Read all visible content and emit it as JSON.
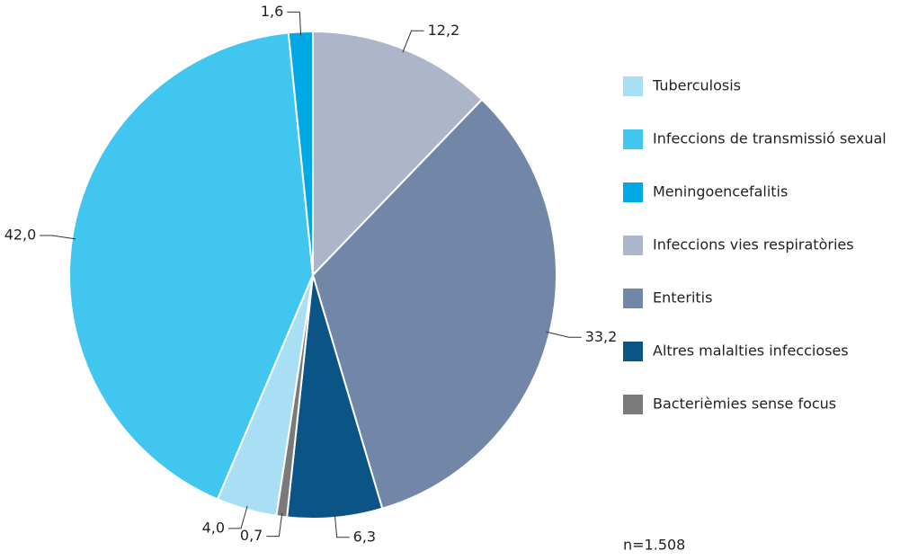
{
  "chart_data": {
    "type": "pie",
    "categories": [
      "Tuberculosis",
      "Infeccions de transmissió sexual",
      "Meningoencefalitis",
      "Infeccions vies respiratòries",
      "Enteritis",
      "Altres malalties infeccioses",
      "Bacterièmies sense focus"
    ],
    "values": [
      4.0,
      42.0,
      1.6,
      12.2,
      33.2,
      6.3,
      0.7
    ],
    "value_labels": [
      "4,0",
      "42,0",
      "1,6",
      "12,2",
      "33,2",
      "6,3",
      "0,7"
    ],
    "colors": [
      "#a8dff5",
      "#41c6f0",
      "#00a9e6",
      "#adb5cb",
      "#7287a8",
      "#0a5585",
      "#7a7a7a"
    ],
    "legend": "right",
    "note": "n=1.508"
  }
}
